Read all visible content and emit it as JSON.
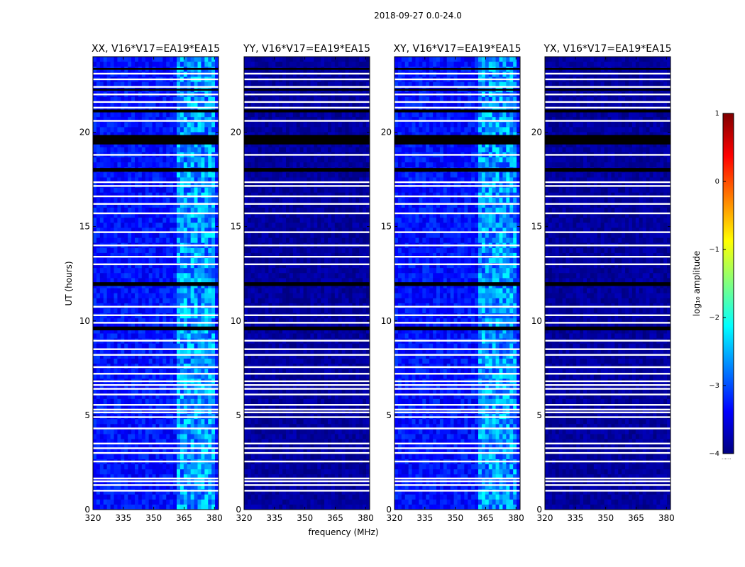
{
  "figure": {
    "suptitle": "2018-09-27 0.0-24.0",
    "xlabel": "frequency (MHz)",
    "ylabel": "UT (hours)"
  },
  "colorbar": {
    "label": "log₁₀ amplitude",
    "range": [
      -4,
      1
    ],
    "ticks": [
      "1",
      "0",
      "−1",
      "−2",
      "−3",
      "−4"
    ],
    "tick_values": [
      1,
      0,
      -1,
      -2,
      -3,
      -4
    ],
    "footnote": "......",
    "colormap": [
      "#00007f",
      "#0000ff",
      "#0080ff",
      "#00ffff",
      "#80ff80",
      "#ffff00",
      "#ff8000",
      "#ff0000",
      "#7f0000"
    ]
  },
  "chart_data": {
    "type": "heatmap",
    "xlim": [
      320,
      382
    ],
    "ylim": [
      0,
      24
    ],
    "x_ticks": [
      320,
      335,
      350,
      365,
      380
    ],
    "y_ticks": [
      0,
      5,
      10,
      15,
      20
    ],
    "x_tick_labels": [
      "320",
      "335",
      "350",
      "365",
      "380"
    ],
    "y_tick_labels": [
      "0",
      "5",
      "10",
      "15",
      "20"
    ],
    "value_units": "log10 amplitude",
    "flagged_rows_white_ut": [
      1.0,
      1.3,
      1.5,
      1.65,
      2.55,
      3.0,
      3.25,
      3.5,
      4.3,
      4.9,
      5.15,
      5.3,
      5.55,
      6.1,
      6.4,
      6.6,
      6.8,
      7.2,
      7.55,
      8.2,
      8.5,
      8.95,
      9.9,
      10.3,
      10.75,
      13.0,
      13.4,
      14.0,
      14.7,
      15.7,
      16.2,
      16.6,
      17.15,
      17.35,
      18.8,
      19.6,
      20.6,
      21.3,
      21.6,
      22.0,
      22.4,
      22.8,
      23.1
    ],
    "flagged_rows_black_ut": [
      [
        17.9,
        18.1
      ],
      [
        19.35,
        19.85
      ],
      [
        11.85,
        12.05
      ],
      [
        9.5,
        9.7
      ],
      [
        21.05,
        21.2
      ],
      [
        22.2,
        22.3
      ],
      [
        23.3,
        23.4
      ]
    ],
    "series": [
      {
        "name": "XX, V16*V17=EA19*EA15",
        "level": "high",
        "rfi_band_mhz": [
          362,
          380
        ],
        "background_log10_amp": -3.3
      },
      {
        "name": "YY, V16*V17=EA19*EA15",
        "level": "low",
        "rfi_band_mhz": null,
        "background_log10_amp": -3.9
      },
      {
        "name": "XY, V16*V17=EA19*EA15",
        "level": "high",
        "rfi_band_mhz": [
          362,
          380
        ],
        "background_log10_amp": -3.3
      },
      {
        "name": "YX, V16*V17=EA19*EA15",
        "level": "low",
        "rfi_band_mhz": null,
        "background_log10_amp": -3.9
      }
    ]
  }
}
